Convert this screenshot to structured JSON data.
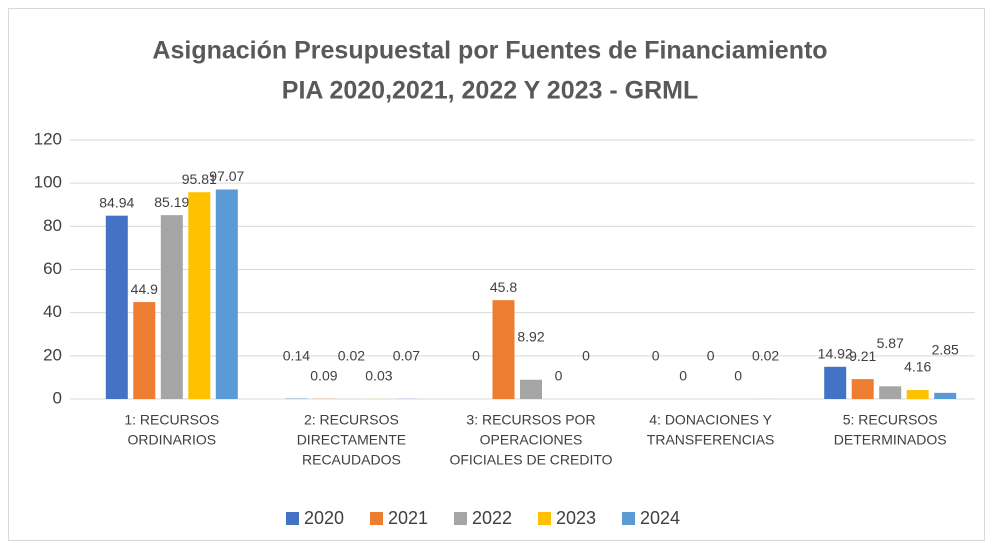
{
  "chart_data": {
    "type": "bar",
    "title": [
      "Asignación Presupuestal por Fuentes de Financiamiento",
      "PIA 2020,2021, 2022 Y 2023 - GRML"
    ],
    "categories": [
      [
        "1: RECURSOS",
        "ORDINARIOS"
      ],
      [
        "2: RECURSOS",
        "DIRECTAMENTE",
        "RECAUDADOS"
      ],
      [
        "3: RECURSOS POR",
        "OPERACIONES",
        "OFICIALES DE CREDITO"
      ],
      [
        "4: DONACIONES Y",
        "TRANSFERENCIAS"
      ],
      [
        "5: RECURSOS",
        "DETERMINADOS"
      ]
    ],
    "series": [
      {
        "name": "2020",
        "color": "#4472c4",
        "values": [
          84.94,
          0.14,
          0,
          0,
          14.92
        ]
      },
      {
        "name": "2021",
        "color": "#ed7d31",
        "values": [
          44.9,
          0.09,
          45.8,
          0,
          9.21
        ]
      },
      {
        "name": "2022",
        "color": "#a5a5a5",
        "values": [
          85.19,
          0.02,
          8.92,
          0,
          5.87
        ]
      },
      {
        "name": "2023",
        "color": "#ffc000",
        "values": [
          95.81,
          0.03,
          0,
          0,
          4.16
        ]
      },
      {
        "name": "2024",
        "color": "#5b9bd5",
        "values": [
          97.07,
          0.07,
          0,
          0.02,
          2.85
        ]
      }
    ],
    "ylim": [
      0,
      120
    ],
    "yticks": [
      0,
      20,
      40,
      60,
      80,
      100,
      120
    ],
    "grid": true,
    "legend": "bottom"
  }
}
